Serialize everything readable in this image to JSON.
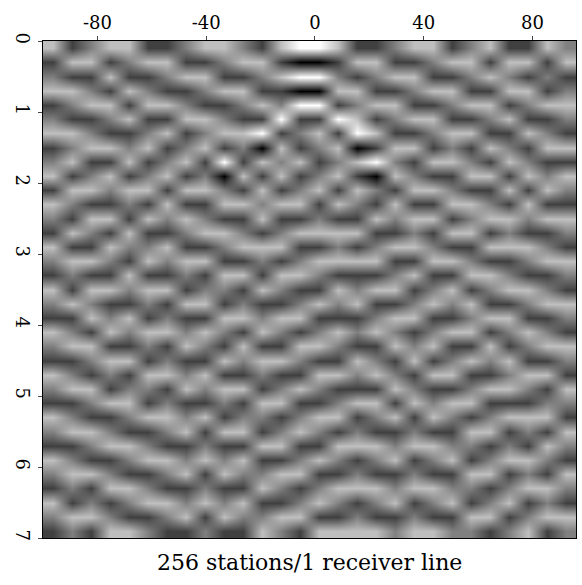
{
  "chart_data": {
    "type": "heatmap",
    "xlabel": "256 stations/1 receiver line",
    "xlim": [
      -100,
      96
    ],
    "ylim": [
      0,
      7
    ],
    "xticks": [
      -80,
      -40,
      0,
      40,
      80
    ],
    "yticks": [
      0,
      1,
      2,
      3,
      4,
      5,
      6,
      7
    ],
    "zlim": [
      -2,
      2
    ],
    "colors": [
      "#000000",
      "#ffffff"
    ],
    "x": [
      -96.5,
      -89.5,
      -82.5,
      -75.5,
      -68.5,
      -61.5,
      -54.5,
      -47.5,
      -40.5,
      -33.5,
      -26.5,
      -19.5,
      -12.5,
      -5.5,
      1.5,
      8.5,
      15.5,
      22.5,
      29.5,
      36.5,
      43.5,
      50.5,
      57.5,
      64.5,
      71.5,
      78.5,
      85.5,
      92.5
    ],
    "y": [
      0.1,
      0.3,
      0.5,
      0.7,
      0.9,
      1.1,
      1.3,
      1.5,
      1.7,
      1.9,
      2.1,
      2.3,
      2.5,
      2.7,
      2.9,
      3.1,
      3.3,
      3.5,
      3.7,
      3.9,
      4.1,
      4.3,
      4.5,
      4.7,
      4.9,
      5.1,
      5.3,
      5.5,
      5.7,
      5.9,
      6.1,
      6.3,
      6.5,
      6.7,
      6.9
    ],
    "z": [
      [
        1,
        -1,
        0,
        1,
        1,
        -1,
        -1,
        0,
        1,
        1,
        0,
        -1,
        1,
        2,
        2,
        1,
        -1,
        -1,
        0,
        1,
        1,
        -1,
        0,
        1,
        -1,
        -1,
        1,
        0
      ],
      [
        -1,
        1,
        1,
        -1,
        0,
        1,
        1,
        -1,
        -1,
        0,
        1,
        1,
        -1,
        -2,
        -2,
        -1,
        1,
        1,
        -1,
        -1,
        0,
        1,
        1,
        -1,
        1,
        1,
        -1,
        1
      ],
      [
        0,
        -1,
        -1,
        1,
        -1,
        -1,
        0,
        1,
        1,
        -1,
        -1,
        0,
        1,
        2,
        2,
        0,
        -1,
        0,
        1,
        1,
        -1,
        -1,
        0,
        1,
        0,
        -1,
        0,
        -1
      ],
      [
        1,
        1,
        0,
        -1,
        1,
        0,
        -1,
        -1,
        0,
        1,
        1,
        -1,
        -1,
        -2,
        -2,
        1,
        1,
        -1,
        -1,
        0,
        1,
        1,
        -1,
        -1,
        1,
        1,
        -1,
        0
      ],
      [
        -1,
        0,
        1,
        1,
        -1,
        1,
        1,
        0,
        -1,
        -1,
        0,
        1,
        0,
        2,
        2,
        -1,
        0,
        1,
        1,
        -1,
        -1,
        0,
        1,
        1,
        -1,
        0,
        1,
        1
      ],
      [
        0,
        -1,
        -1,
        0,
        1,
        -1,
        -1,
        1,
        1,
        0,
        -1,
        -1,
        2,
        -1,
        -1,
        2,
        1,
        -1,
        0,
        1,
        1,
        -1,
        -1,
        0,
        1,
        -1,
        -1,
        0
      ],
      [
        1,
        1,
        0,
        -1,
        -1,
        0,
        1,
        -1,
        0,
        1,
        1,
        2,
        -1,
        0,
        1,
        -1,
        2,
        1,
        -1,
        -1,
        0,
        1,
        1,
        -1,
        -1,
        1,
        0,
        -1
      ],
      [
        -1,
        0,
        1,
        1,
        0,
        1,
        -1,
        0,
        1,
        -1,
        0,
        -2,
        1,
        -1,
        0,
        1,
        -2,
        -1,
        1,
        1,
        -1,
        0,
        -1,
        1,
        0,
        -1,
        1,
        1
      ],
      [
        0,
        1,
        -1,
        -1,
        1,
        -1,
        0,
        1,
        -1,
        2,
        -1,
        1,
        0,
        1,
        -1,
        0,
        1,
        2,
        0,
        -1,
        1,
        1,
        0,
        -1,
        1,
        0,
        -1,
        -1
      ],
      [
        1,
        -1,
        0,
        1,
        -1,
        0,
        1,
        -1,
        0,
        -2,
        1,
        -1,
        1,
        -1,
        0,
        1,
        -1,
        -2,
        1,
        0,
        -1,
        -1,
        1,
        1,
        -1,
        1,
        0,
        1
      ],
      [
        -1,
        1,
        1,
        0,
        1,
        1,
        -1,
        1,
        1,
        0,
        -1,
        1,
        -1,
        0,
        1,
        -1,
        1,
        0,
        -1,
        1,
        1,
        0,
        -1,
        -1,
        1,
        -1,
        1,
        0
      ],
      [
        1,
        0,
        -1,
        -1,
        0,
        -1,
        1,
        -1,
        -1,
        1,
        1,
        0,
        1,
        1,
        -1,
        1,
        0,
        -1,
        1,
        -1,
        -1,
        1,
        1,
        0,
        -1,
        1,
        -1,
        -1
      ],
      [
        0,
        -1,
        1,
        1,
        -1,
        1,
        0,
        1,
        0,
        -1,
        -1,
        1,
        -1,
        -1,
        0,
        -1,
        -1,
        1,
        0,
        1,
        1,
        -1,
        0,
        1,
        1,
        0,
        1,
        1
      ],
      [
        -1,
        1,
        0,
        -1,
        1,
        -1,
        -1,
        0,
        1,
        1,
        0,
        -1,
        0,
        1,
        1,
        1,
        1,
        -1,
        -1,
        0,
        -1,
        1,
        1,
        -1,
        0,
        -1,
        -1,
        0
      ],
      [
        1,
        -1,
        -1,
        1,
        0,
        0,
        1,
        -1,
        -1,
        0,
        1,
        1,
        1,
        -1,
        -1,
        0,
        -1,
        0,
        1,
        1,
        0,
        -1,
        -1,
        1,
        1,
        1,
        0,
        -1
      ],
      [
        0,
        1,
        1,
        0,
        -1,
        1,
        0,
        1,
        1,
        -1,
        -1,
        0,
        -1,
        0,
        1,
        1,
        1,
        1,
        -1,
        -1,
        1,
        1,
        0,
        -1,
        -1,
        0,
        1,
        1
      ],
      [
        -1,
        0,
        -1,
        -1,
        1,
        -1,
        -1,
        0,
        -1,
        1,
        1,
        -1,
        1,
        1,
        0,
        -1,
        -1,
        -1,
        0,
        1,
        -1,
        -1,
        1,
        1,
        0,
        -1,
        -1,
        0
      ],
      [
        1,
        -1,
        1,
        1,
        0,
        1,
        1,
        -1,
        0,
        0,
        -1,
        1,
        0,
        -1,
        -1,
        1,
        0,
        1,
        1,
        -1,
        0,
        1,
        -1,
        0,
        1,
        1,
        0,
        -1
      ],
      [
        0,
        1,
        0,
        -1,
        -1,
        0,
        -1,
        1,
        1,
        -1,
        0,
        -1,
        -1,
        0,
        1,
        0,
        1,
        -1,
        -1,
        0,
        1,
        0,
        1,
        -1,
        -1,
        0,
        1,
        1
      ],
      [
        -1,
        -1,
        1,
        0,
        1,
        -1,
        0,
        -1,
        -1,
        1,
        1,
        0,
        1,
        1,
        -1,
        -1,
        -1,
        0,
        1,
        1,
        -1,
        -1,
        0,
        1,
        1,
        -1,
        -1,
        0
      ],
      [
        1,
        0,
        -1,
        1,
        0,
        1,
        1,
        0,
        1,
        0,
        -1,
        1,
        0,
        -1,
        0,
        1,
        0,
        1,
        0,
        -1,
        0,
        1,
        1,
        -1,
        0,
        1,
        0,
        -1
      ],
      [
        0,
        1,
        1,
        -1,
        -1,
        0,
        -1,
        1,
        0,
        -1,
        1,
        -1,
        -1,
        1,
        1,
        0,
        -1,
        -1,
        1,
        0,
        1,
        -1,
        -1,
        1,
        -1,
        0,
        1,
        1
      ],
      [
        -1,
        -1,
        0,
        1,
        1,
        -1,
        0,
        -1,
        -1,
        1,
        0,
        1,
        1,
        0,
        -1,
        -1,
        1,
        0,
        -1,
        1,
        -1,
        0,
        1,
        0,
        1,
        -1,
        -1,
        0
      ],
      [
        1,
        0,
        -1,
        0,
        -1,
        1,
        1,
        0,
        1,
        -1,
        -1,
        0,
        -1,
        -1,
        1,
        1,
        0,
        1,
        0,
        -1,
        1,
        1,
        -1,
        -1,
        0,
        1,
        1,
        -1
      ],
      [
        0,
        1,
        1,
        -1,
        0,
        0,
        -1,
        1,
        0,
        1,
        1,
        -1,
        0,
        1,
        0,
        -1,
        -1,
        -1,
        1,
        0,
        -1,
        -1,
        0,
        1,
        1,
        0,
        -1,
        1
      ],
      [
        -1,
        -1,
        0,
        1,
        1,
        -1,
        0,
        -1,
        -1,
        0,
        -1,
        1,
        1,
        -1,
        -1,
        0,
        1,
        1,
        -1,
        1,
        0,
        1,
        1,
        -1,
        -1,
        -1,
        0,
        0
      ],
      [
        1,
        0,
        -1,
        -1,
        0,
        1,
        1,
        0,
        1,
        -1,
        0,
        0,
        -1,
        0,
        1,
        1,
        -1,
        0,
        1,
        -1,
        1,
        0,
        -1,
        0,
        1,
        1,
        1,
        -1
      ],
      [
        0,
        1,
        1,
        0,
        -1,
        -1,
        0,
        1,
        -1,
        1,
        1,
        -1,
        0,
        1,
        0,
        -1,
        0,
        -1,
        -1,
        0,
        -1,
        -1,
        1,
        1,
        -1,
        0,
        -1,
        1
      ],
      [
        -1,
        -1,
        0,
        1,
        1,
        0,
        -1,
        -1,
        0,
        -1,
        -1,
        1,
        1,
        -1,
        -1,
        1,
        1,
        1,
        0,
        1,
        1,
        0,
        0,
        -1,
        0,
        -1,
        1,
        0
      ],
      [
        1,
        0,
        -1,
        -1,
        0,
        1,
        1,
        0,
        1,
        0,
        1,
        -1,
        -1,
        0,
        1,
        0,
        -1,
        0,
        1,
        -1,
        0,
        1,
        -1,
        0,
        1,
        1,
        0,
        -1
      ],
      [
        0,
        1,
        1,
        0,
        -1,
        -1,
        0,
        1,
        -1,
        1,
        0,
        0,
        1,
        1,
        -1,
        -1,
        0,
        -1,
        -1,
        0,
        -1,
        -1,
        1,
        1,
        -1,
        0,
        -1,
        1
      ],
      [
        -1,
        0,
        -1,
        1,
        1,
        0,
        -1,
        -1,
        0,
        -1,
        -1,
        1,
        0,
        -1,
        0,
        1,
        1,
        1,
        0,
        1,
        1,
        0,
        0,
        -1,
        0,
        1,
        1,
        0
      ],
      [
        1,
        -1,
        0,
        -1,
        0,
        1,
        1,
        0,
        1,
        0,
        1,
        -1,
        -1,
        0,
        1,
        0,
        -1,
        0,
        1,
        -1,
        0,
        1,
        -1,
        0,
        1,
        -1,
        0,
        -1
      ],
      [
        0,
        1,
        1,
        0,
        -1,
        -1,
        0,
        1,
        -1,
        1,
        0,
        0,
        1,
        1,
        -1,
        -1,
        0,
        -1,
        -1,
        0,
        -1,
        -1,
        1,
        1,
        -1,
        0,
        1,
        1
      ],
      [
        -1,
        0,
        -1,
        1,
        1,
        0,
        -1,
        -1,
        0,
        -1,
        -1,
        1,
        0,
        -1,
        1,
        1,
        1,
        1,
        0,
        1,
        1,
        0,
        0,
        -1,
        0,
        1,
        -1,
        0
      ]
    ]
  }
}
